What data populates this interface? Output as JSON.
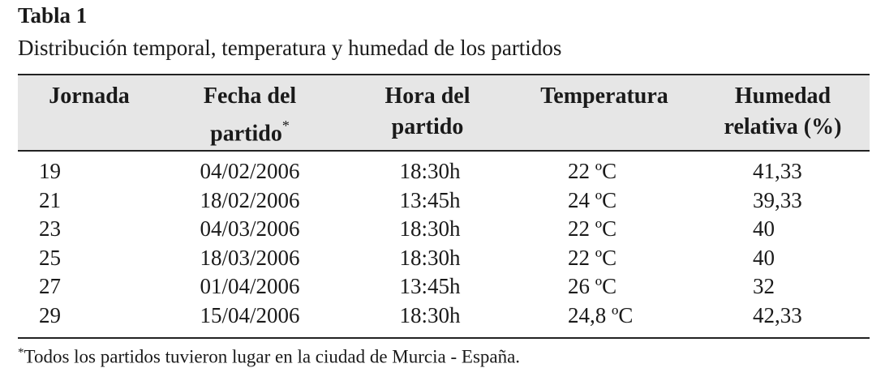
{
  "title": "Tabla 1",
  "subtitle": "Distribución temporal, temperatura y humedad de los partidos",
  "table": {
    "header": [
      [
        "Jornada"
      ],
      [
        "Fecha del",
        "partido"
      ],
      [
        "Hora del",
        "partido"
      ],
      [
        "Temperatura"
      ],
      [
        "Humedad",
        "relativa (%)"
      ]
    ],
    "header_marker": "*",
    "rows": [
      [
        "19",
        "04/02/2006",
        "18:30h",
        "22 ºC",
        "41,33"
      ],
      [
        "21",
        "18/02/2006",
        "13:45h",
        "24 ºC",
        "39,33"
      ],
      [
        "23",
        "04/03/2006",
        "18:30h",
        "22 ºC",
        "40"
      ],
      [
        "25",
        "18/03/2006",
        "18:30h",
        "22 ºC",
        "40"
      ],
      [
        "27",
        "01/04/2006",
        "13:45h",
        "26 ºC",
        "32"
      ],
      [
        "29",
        "15/04/2006",
        "18:30h",
        "24,8 ºC",
        "42,33"
      ]
    ]
  },
  "footnote": {
    "marker": "*",
    "text": "Todos los partidos tuvieron lugar en la ciudad de Murcia - España."
  }
}
